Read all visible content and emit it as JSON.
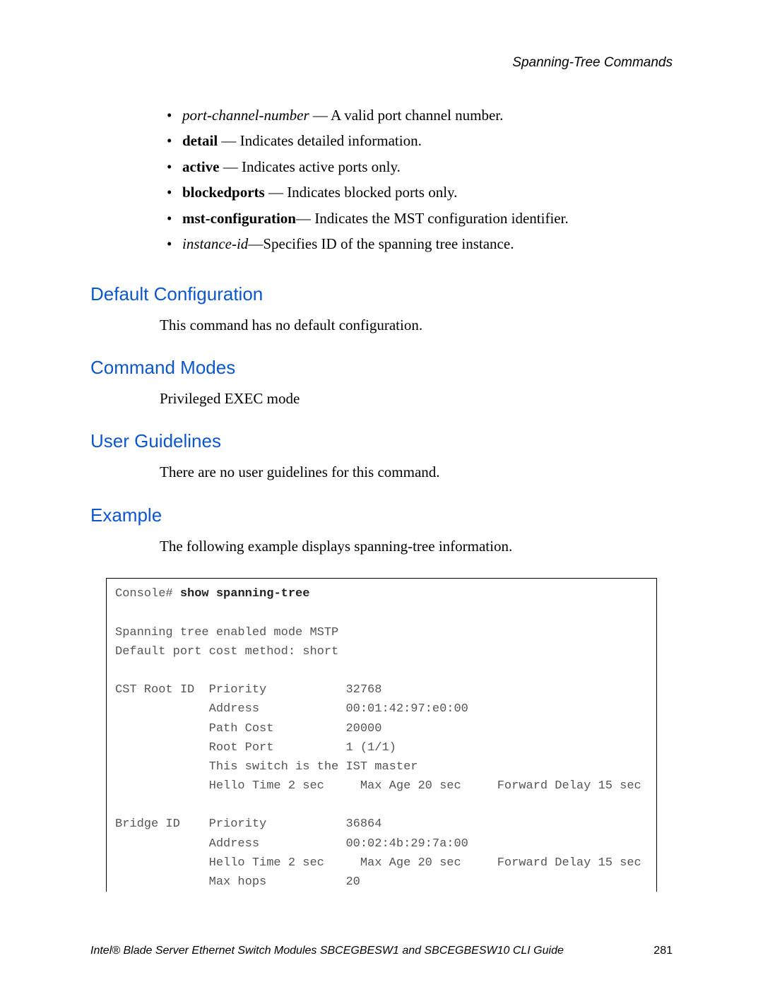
{
  "header": {
    "running_title": "Spanning-Tree Commands"
  },
  "bullets": [
    {
      "term": "port-channel-number",
      "term_style": "italic",
      "sep": " — ",
      "desc": "A valid port channel number."
    },
    {
      "term": "detail",
      "term_style": "bold",
      "sep": " — ",
      "desc": "Indicates detailed information."
    },
    {
      "term": "active",
      "term_style": "bold",
      "sep": " — ",
      "desc": "Indicates active ports only."
    },
    {
      "term": "blockedports",
      "term_style": "bold",
      "sep": " — ",
      "desc": "Indicates blocked ports only."
    },
    {
      "term": "mst-configuration",
      "term_style": "bold",
      "sep": "— ",
      "desc": "Indicates the MST configuration identifier."
    },
    {
      "term": "instance-id",
      "term_style": "italic",
      "sep": "—",
      "desc": "Specifies ID of the spanning tree instance."
    }
  ],
  "sections": {
    "default_config": {
      "heading": "Default Configuration",
      "body": "This command has no default configuration."
    },
    "command_modes": {
      "heading": "Command Modes",
      "body": "Privileged EXEC mode"
    },
    "user_guidelines": {
      "heading": "User Guidelines",
      "body": "There are no user guidelines for this command."
    },
    "example": {
      "heading": "Example",
      "body": "The following example displays spanning-tree information."
    }
  },
  "console": {
    "prompt": "Console# ",
    "command": "show spanning-tree",
    "lines": [
      "",
      "Spanning tree enabled mode MSTP",
      "Default port cost method: short",
      "",
      "CST Root ID  Priority           32768",
      "             Address            00:01:42:97:e0:00",
      "             Path Cost          20000",
      "             Root Port          1 (1/1)",
      "             This switch is the IST master",
      "             Hello Time 2 sec     Max Age 20 sec     Forward Delay 15 sec",
      "",
      "Bridge ID    Priority           36864",
      "             Address            00:02:4b:29:7a:00",
      "             Hello Time 2 sec     Max Age 20 sec     Forward Delay 15 sec",
      "             Max hops           20"
    ]
  },
  "footer": {
    "title": "Intel® Blade Server Ethernet Switch Modules SBCEGBESW1 and SBCEGBESW10 CLI Guide",
    "page_number": "281"
  },
  "colors": {
    "heading_color": "#0b57d0",
    "body_text": "#000000",
    "code_text": "#555555",
    "background": "#ffffff",
    "border": "#000000"
  },
  "typography": {
    "body_family": "Times New Roman",
    "heading_family": "Arial",
    "code_family": "Courier New",
    "body_size_pt": 16,
    "heading_size_pt": 20,
    "code_size_pt": 13
  }
}
